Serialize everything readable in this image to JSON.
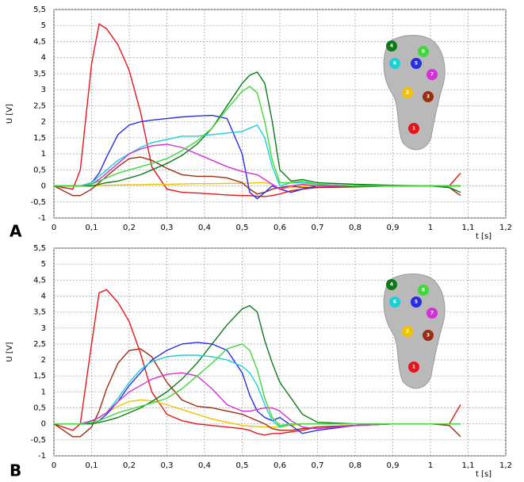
{
  "chart_data": [
    {
      "type": "line",
      "panel_label": "A",
      "xlabel": "t [s]",
      "ylabel": "U [V]",
      "xlim": [
        0,
        1.2
      ],
      "ylim": [
        -1,
        5.5
      ],
      "grid": true,
      "xticks": [
        0,
        {
          "value": 0.1,
          "label": "0,1"
        },
        {
          "value": 0.2,
          "label": "0,2"
        },
        {
          "value": 0.3,
          "label": "0,3"
        },
        {
          "value": 0.4,
          "label": "0,4"
        },
        {
          "value": 0.5,
          "label": "0,5"
        },
        {
          "value": 0.6,
          "label": "0,6"
        },
        {
          "value": 0.7,
          "label": "0,7"
        },
        {
          "value": 0.8,
          "label": "0,8"
        },
        {
          "value": 0.9,
          "label": "0,9"
        },
        1,
        {
          "value": 1.1,
          "label": "1,1"
        },
        {
          "value": 1.2,
          "label": "1,2"
        }
      ],
      "yticks": [
        -1,
        {
          "value": -0.5,
          "label": "-0,5"
        },
        0,
        {
          "value": 0.5,
          "label": "0,5"
        },
        1,
        {
          "value": 1.5,
          "label": "1,5"
        },
        2,
        {
          "value": 2.5,
          "label": "2,5"
        },
        3,
        {
          "value": 3.5,
          "label": "3,5"
        },
        4,
        {
          "value": 4.5,
          "label": "4,5"
        },
        5,
        {
          "value": 5.5,
          "label": "5,5"
        }
      ],
      "x": [
        0,
        0.05,
        0.07,
        0.1,
        0.12,
        0.14,
        0.17,
        0.2,
        0.23,
        0.26,
        0.3,
        0.34,
        0.38,
        0.42,
        0.46,
        0.5,
        0.52,
        0.54,
        0.56,
        0.58,
        0.6,
        0.63,
        0.66,
        0.7,
        0.8,
        0.9,
        1.0,
        1.05,
        1.08
      ],
      "series": [
        {
          "name": "1",
          "color": "#e8141c",
          "values": [
            0,
            -0.1,
            0.5,
            3.8,
            5.05,
            4.9,
            4.4,
            3.6,
            2.3,
            0.6,
            -0.1,
            -0.2,
            -0.22,
            -0.25,
            -0.28,
            -0.3,
            -0.3,
            -0.32,
            -0.33,
            -0.3,
            -0.25,
            -0.15,
            -0.1,
            -0.05,
            -0.02,
            0,
            0,
            0,
            0.4
          ]
        },
        {
          "name": "2",
          "color": "#f2c200",
          "values": [
            0,
            0,
            0,
            0,
            0.01,
            0.02,
            0.03,
            0.04,
            0.04,
            0.05,
            0.05,
            0.06,
            0.07,
            0.07,
            0.08,
            0.08,
            0.09,
            0.1,
            0.1,
            0.05,
            -0.1,
            -0.05,
            0,
            0,
            0,
            0,
            0,
            0,
            0
          ]
        },
        {
          "name": "3",
          "color": "#9b2d12",
          "values": [
            0,
            -0.3,
            -0.3,
            -0.1,
            0.1,
            0.3,
            0.6,
            0.85,
            0.9,
            0.8,
            0.55,
            0.35,
            0.3,
            0.3,
            0.25,
            0.1,
            -0.1,
            -0.25,
            -0.2,
            -0.1,
            -0.05,
            0,
            -0.05,
            -0.05,
            -0.03,
            0,
            0,
            -0.05,
            -0.3
          ]
        },
        {
          "name": "4",
          "color": "#0d7a1a",
          "values": [
            0,
            0,
            0,
            0,
            0.05,
            0.1,
            0.15,
            0.25,
            0.35,
            0.5,
            0.7,
            0.95,
            1.3,
            1.8,
            2.5,
            3.2,
            3.45,
            3.55,
            3.2,
            2.0,
            0.5,
            0.15,
            0.2,
            0.1,
            0.05,
            0.02,
            0,
            -0.05,
            -0.2
          ]
        },
        {
          "name": "5",
          "color": "#2a2ee0",
          "values": [
            0,
            0,
            0,
            0.1,
            0.4,
            0.9,
            1.6,
            1.9,
            2.0,
            2.05,
            2.1,
            2.15,
            2.18,
            2.2,
            2.1,
            1.0,
            -0.2,
            -0.4,
            -0.2,
            0,
            -0.1,
            -0.2,
            -0.1,
            0,
            0,
            0,
            0,
            0,
            0
          ]
        },
        {
          "name": "6",
          "color": "#1ccfd6",
          "values": [
            0,
            0,
            0,
            0.1,
            0.3,
            0.5,
            0.8,
            1.0,
            1.2,
            1.35,
            1.45,
            1.55,
            1.55,
            1.6,
            1.65,
            1.7,
            1.8,
            1.9,
            1.5,
            0.6,
            0,
            0.1,
            0.1,
            0.05,
            0,
            0,
            0,
            0,
            0
          ]
        },
        {
          "name": "7",
          "color": "#d52fd8",
          "values": [
            0,
            0,
            0,
            0.05,
            0.2,
            0.4,
            0.7,
            1.0,
            1.15,
            1.25,
            1.3,
            1.2,
            1.0,
            0.8,
            0.6,
            0.45,
            0.4,
            0.35,
            0.2,
            0.05,
            -0.1,
            0,
            0.05,
            0,
            0,
            0,
            0,
            0,
            0
          ]
        },
        {
          "name": "8",
          "color": "#3fd93a",
          "values": [
            0,
            0,
            0,
            0.05,
            0.15,
            0.25,
            0.4,
            0.5,
            0.6,
            0.7,
            0.85,
            1.1,
            1.4,
            1.8,
            2.4,
            2.95,
            3.1,
            2.9,
            2.0,
            0.8,
            0.1,
            0.1,
            0.15,
            0.05,
            0,
            0,
            0,
            0,
            0
          ]
        }
      ]
    },
    {
      "type": "line",
      "panel_label": "B",
      "xlabel": "t [s]",
      "ylabel": "U [V]",
      "xlim": [
        0,
        1.2
      ],
      "ylim": [
        -1,
        5.5
      ],
      "grid": true,
      "xticks": [
        0,
        {
          "value": 0.1,
          "label": "0,1"
        },
        {
          "value": 0.2,
          "label": "0,2"
        },
        {
          "value": 0.3,
          "label": "0,3"
        },
        {
          "value": 0.4,
          "label": "0,4"
        },
        {
          "value": 0.5,
          "label": "0,5"
        },
        {
          "value": 0.6,
          "label": "0,6"
        },
        {
          "value": 0.7,
          "label": "0,7"
        },
        {
          "value": 0.8,
          "label": "0,8"
        },
        {
          "value": 0.9,
          "label": "0,9"
        },
        1,
        {
          "value": 1.1,
          "label": "1,1"
        },
        {
          "value": 1.2,
          "label": "1,2"
        }
      ],
      "yticks": [
        -1,
        {
          "value": -0.5,
          "label": "-0,5"
        },
        0,
        {
          "value": 0.5,
          "label": "0,5"
        },
        1,
        {
          "value": 1.5,
          "label": "1,5"
        },
        2,
        {
          "value": 2.5,
          "label": "2,5"
        },
        3,
        {
          "value": 3.5,
          "label": "3,5"
        },
        4,
        {
          "value": 4.5,
          "label": "4,5"
        },
        5,
        {
          "value": 5.5,
          "label": "5,5"
        }
      ],
      "x": [
        0,
        0.05,
        0.07,
        0.1,
        0.12,
        0.14,
        0.17,
        0.2,
        0.23,
        0.26,
        0.3,
        0.34,
        0.38,
        0.42,
        0.46,
        0.5,
        0.52,
        0.54,
        0.56,
        0.58,
        0.6,
        0.63,
        0.66,
        0.7,
        0.8,
        0.9,
        1.0,
        1.05,
        1.08
      ],
      "series": [
        {
          "name": "1",
          "color": "#e8141c",
          "values": [
            0,
            -0.2,
            0,
            2.5,
            4.1,
            4.2,
            3.8,
            3.2,
            2.2,
            1.0,
            0.3,
            0.1,
            0,
            -0.05,
            -0.1,
            -0.15,
            -0.2,
            -0.3,
            -0.35,
            -0.3,
            -0.3,
            -0.25,
            -0.2,
            -0.1,
            -0.05,
            0,
            0,
            0,
            0.6
          ]
        },
        {
          "name": "2",
          "color": "#f2c200",
          "values": [
            0,
            0,
            0,
            0.05,
            0.2,
            0.35,
            0.55,
            0.7,
            0.75,
            0.72,
            0.6,
            0.45,
            0.3,
            0.15,
            0.05,
            -0.05,
            -0.07,
            -0.08,
            -0.1,
            -0.1,
            -0.1,
            -0.05,
            0,
            0,
            0,
            0,
            0,
            0,
            0
          ]
        },
        {
          "name": "3",
          "color": "#9b2d12",
          "values": [
            0,
            -0.4,
            -0.4,
            -0.1,
            0.4,
            1.1,
            1.9,
            2.3,
            2.35,
            2.1,
            1.3,
            0.75,
            0.55,
            0.5,
            0.4,
            0.3,
            0.2,
            0.1,
            0,
            -0.15,
            -0.2,
            -0.2,
            -0.15,
            -0.1,
            -0.05,
            0,
            0,
            -0.05,
            -0.4
          ]
        },
        {
          "name": "4",
          "color": "#0d7a1a",
          "values": [
            0,
            0,
            0,
            0,
            0.05,
            0.1,
            0.2,
            0.35,
            0.5,
            0.7,
            1.0,
            1.4,
            1.9,
            2.5,
            3.1,
            3.6,
            3.7,
            3.5,
            2.6,
            1.9,
            1.3,
            0.8,
            0.3,
            0.05,
            0,
            0,
            0,
            0,
            0
          ]
        },
        {
          "name": "5",
          "color": "#2a2ee0",
          "values": [
            0,
            0,
            0,
            0.05,
            0.1,
            0.3,
            0.7,
            1.2,
            1.6,
            2.0,
            2.3,
            2.5,
            2.55,
            2.5,
            2.3,
            1.6,
            0.9,
            0.4,
            0.2,
            0.1,
            0.2,
            -0.05,
            -0.3,
            -0.2,
            -0.05,
            0,
            0,
            0,
            0
          ]
        },
        {
          "name": "6",
          "color": "#1ccfd6",
          "values": [
            0,
            0,
            0,
            0.1,
            0.2,
            0.35,
            0.8,
            1.3,
            1.7,
            1.95,
            2.1,
            2.15,
            2.15,
            2.1,
            2.0,
            1.8,
            1.6,
            1.2,
            0.6,
            0.1,
            -0.1,
            0,
            0,
            0,
            0,
            0,
            0,
            0,
            0
          ]
        },
        {
          "name": "7",
          "color": "#d52fd8",
          "values": [
            0,
            0,
            0,
            0.1,
            0.2,
            0.35,
            0.7,
            1.0,
            1.2,
            1.4,
            1.55,
            1.6,
            1.5,
            1.1,
            0.6,
            0.4,
            0.4,
            0.45,
            0.5,
            0.5,
            0.4,
            0.1,
            -0.1,
            -0.15,
            -0.05,
            0,
            0,
            0,
            0
          ]
        },
        {
          "name": "8",
          "color": "#3fd93a",
          "values": [
            0,
            0,
            0,
            0.05,
            0.1,
            0.2,
            0.35,
            0.45,
            0.55,
            0.65,
            0.8,
            1.1,
            1.5,
            1.9,
            2.35,
            2.5,
            2.3,
            1.7,
            0.8,
            0.2,
            -0.05,
            0,
            0,
            0,
            0,
            0,
            0,
            0,
            0
          ]
        }
      ]
    }
  ]
}
